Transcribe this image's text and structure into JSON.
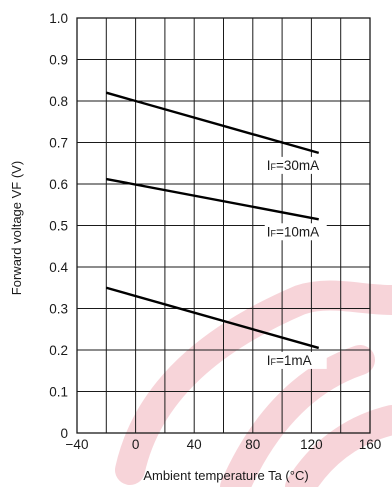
{
  "chart_data": {
    "type": "line",
    "title": "",
    "xlabel": "Ambient temperature  Ta  (°C)",
    "ylabel": "Forward voltage  VF  (V)",
    "xlim": [
      -40,
      160
    ],
    "ylim": [
      0,
      1.0
    ],
    "x_tick_step": 20,
    "y_tick_step": 0.1,
    "x_tick_labels": [
      "−40",
      "0",
      "40",
      "80",
      "120",
      "160"
    ],
    "x_tick_label_values": [
      -40,
      0,
      40,
      80,
      120,
      160
    ],
    "y_tick_labels": [
      "0",
      "0.1",
      "0.2",
      "0.3",
      "0.4",
      "0.5",
      "0.6",
      "0.7",
      "0.8",
      "0.9",
      "1.0"
    ],
    "grid": true,
    "series": [
      {
        "name": "IF=30mA",
        "x": [
          -20,
          125
        ],
        "y": [
          0.82,
          0.675
        ],
        "label_main": "I",
        "label_sub": "F",
        "label_rest": "=30mA"
      },
      {
        "name": "IF=10mA",
        "x": [
          -20,
          125
        ],
        "y": [
          0.612,
          0.515
        ],
        "label_main": "I",
        "label_sub": "F",
        "label_rest": "=10mA"
      },
      {
        "name": "IF=1mA",
        "x": [
          -20,
          125
        ],
        "y": [
          0.35,
          0.205
        ],
        "label_main": "I",
        "label_sub": "F",
        "label_rest": "=1mA"
      }
    ]
  }
}
